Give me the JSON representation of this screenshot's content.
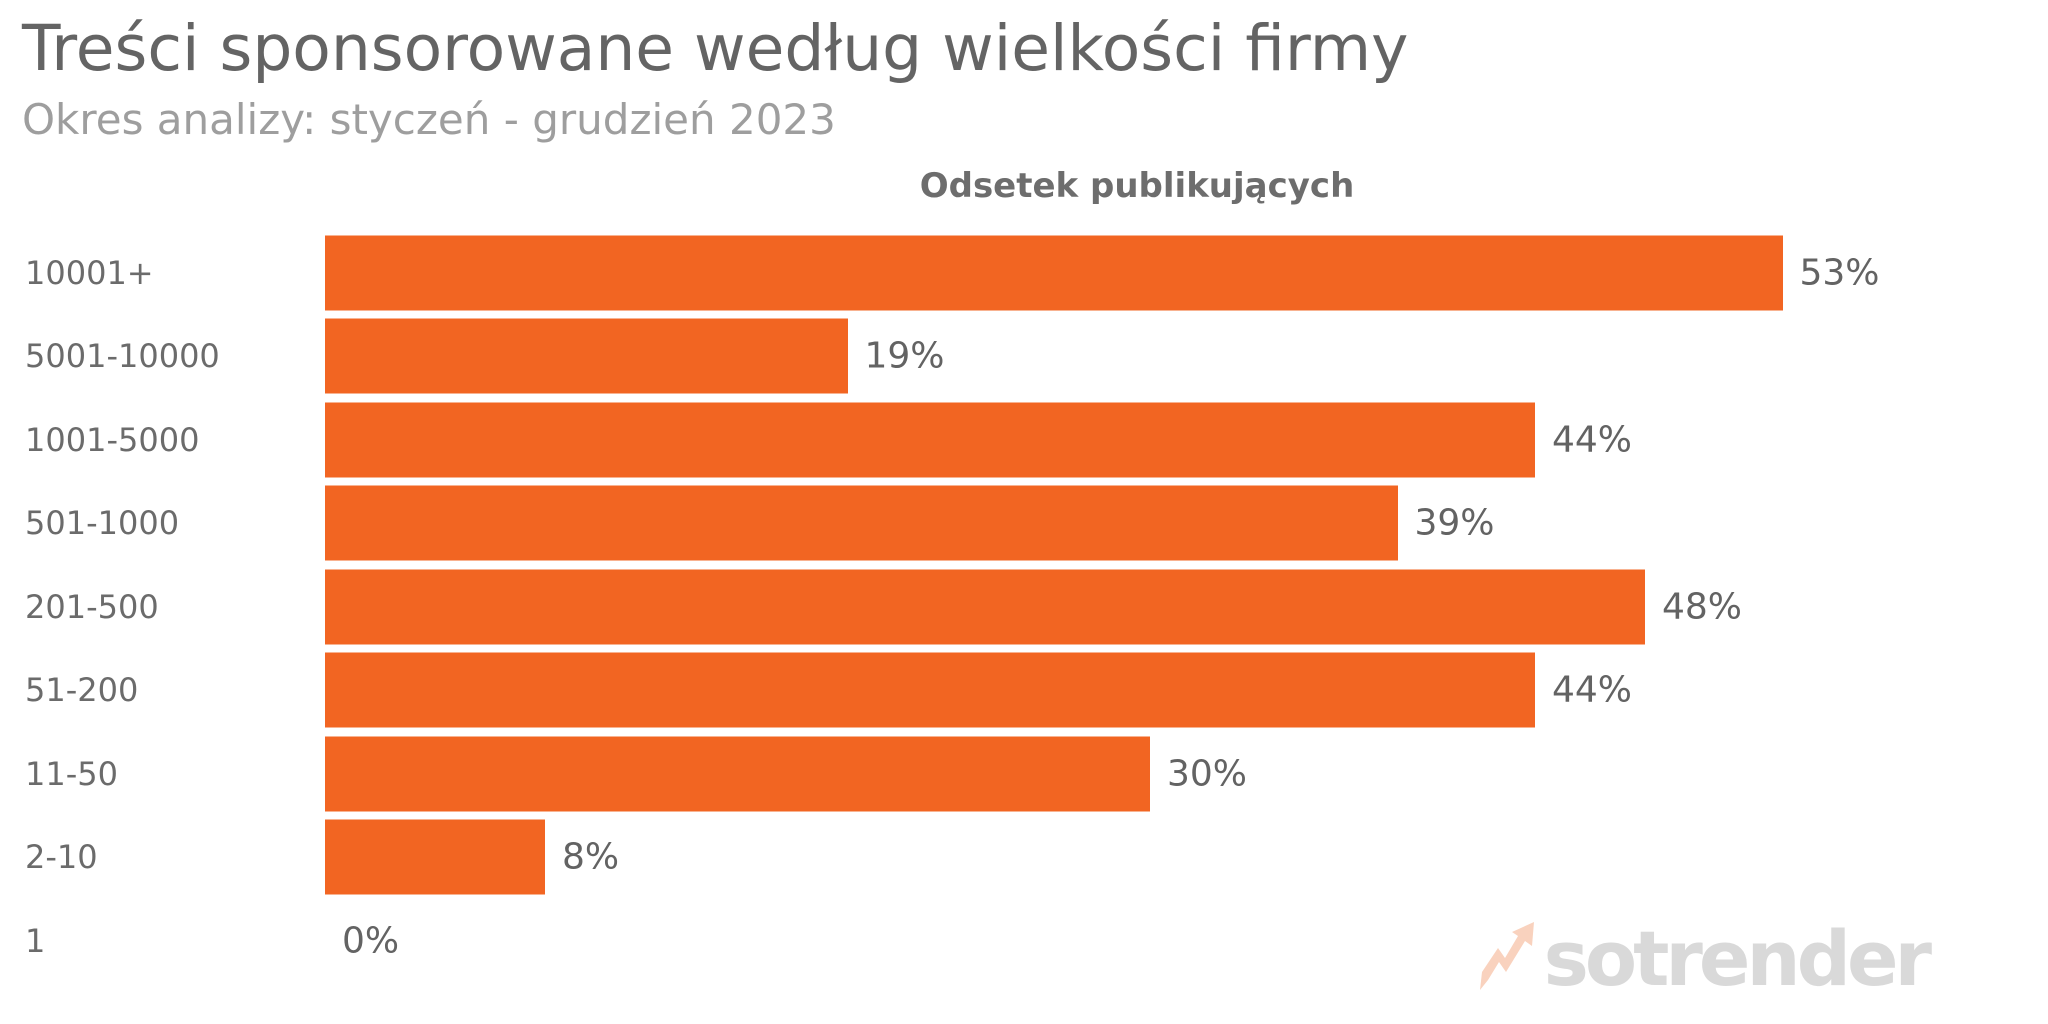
{
  "page": {
    "title": "Treści sponsorowane według wielkości firmy",
    "subtitle": "Okres analizy: styczeń - grudzień 2023"
  },
  "chart_data": {
    "type": "bar",
    "orientation": "horizontal",
    "title": "Odsetek publikujących",
    "categories": [
      "10001+",
      "5001-10000",
      "1001-5000",
      "501-1000",
      "201-500",
      "51-200",
      "11-50",
      "2-10",
      "1"
    ],
    "values": [
      53,
      19,
      44,
      39,
      48,
      44,
      30,
      8,
      0
    ],
    "value_labels": [
      "53%",
      "19%",
      "44%",
      "39%",
      "48%",
      "44%",
      "30%",
      "8%",
      "0%"
    ],
    "unit": "%",
    "xlim": [
      0,
      62
    ],
    "grid": false,
    "legend": "none",
    "bar_color": "#F26522"
  },
  "watermark": {
    "text": "sotrender",
    "icon": "trend-arrow-icon"
  },
  "colors": {
    "bar": "#F26522",
    "title_text": "#646464",
    "subtitle_text": "#9E9E9E",
    "label_text": "#6B6B6B",
    "value_text": "#636363",
    "axis_title_text": "#6D6D6D",
    "watermark_text": "#D9D9D9",
    "watermark_icon": "#F9D2BE",
    "background": "#FFFFFF"
  }
}
